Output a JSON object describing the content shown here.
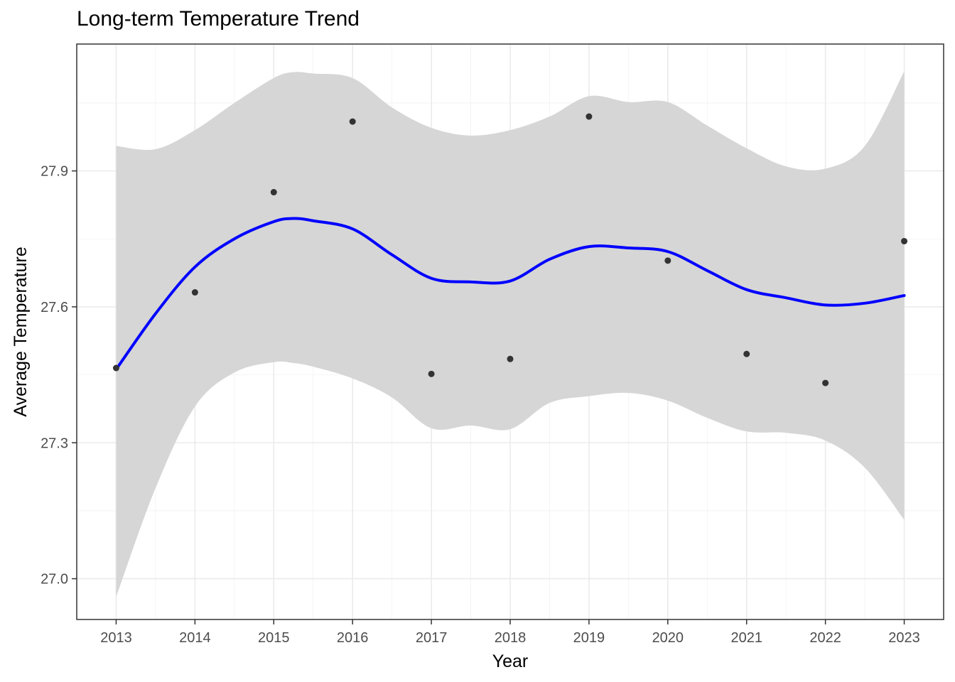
{
  "chart_data": {
    "type": "scatter",
    "title": "Long-term Temperature Trend",
    "xlabel": "Year",
    "ylabel": "Average Temperature",
    "xlim": [
      2012.5,
      2023.5
    ],
    "ylim": [
      26.91,
      28.18
    ],
    "x_ticks": [
      2013,
      2014,
      2015,
      2016,
      2017,
      2018,
      2019,
      2020,
      2021,
      2022,
      2023
    ],
    "y_ticks": [
      27.0,
      27.3,
      27.6,
      27.9
    ],
    "y_tick_labels": [
      "27.0",
      "27.3",
      "27.6",
      "27.9"
    ],
    "grid": true,
    "points": {
      "x": [
        2013,
        2014,
        2015,
        2016,
        2017,
        2018,
        2019,
        2020,
        2021,
        2022,
        2023
      ],
      "y": [
        27.465,
        27.632,
        27.853,
        28.009,
        27.452,
        27.485,
        28.02,
        27.702,
        27.496,
        27.432,
        27.745
      ],
      "color": "#333333"
    },
    "smooth": {
      "color": "#0000ff",
      "band_color": "#d6d6d6",
      "x": [
        2013,
        2013.5,
        2014,
        2014.5,
        2015,
        2015.25,
        2015.5,
        2016,
        2016.5,
        2017,
        2017.5,
        2018,
        2018.5,
        2019,
        2019.5,
        2020,
        2020.5,
        2021,
        2021.5,
        2022,
        2022.5,
        2023
      ],
      "y": [
        27.462,
        27.585,
        27.688,
        27.75,
        27.788,
        27.795,
        27.79,
        27.772,
        27.715,
        27.663,
        27.655,
        27.657,
        27.705,
        27.733,
        27.73,
        27.722,
        27.68,
        27.638,
        27.62,
        27.604,
        27.608,
        27.625
      ],
      "upper": [
        27.955,
        27.948,
        27.99,
        28.05,
        28.105,
        28.118,
        28.115,
        28.105,
        28.04,
        27.995,
        27.978,
        27.99,
        28.02,
        28.065,
        28.052,
        28.052,
        28.0,
        27.95,
        27.91,
        27.905,
        27.955,
        28.12
      ],
      "lower": [
        26.96,
        27.2,
        27.38,
        27.455,
        27.478,
        27.476,
        27.468,
        27.442,
        27.4,
        27.332,
        27.338,
        27.33,
        27.388,
        27.403,
        27.41,
        27.393,
        27.355,
        27.325,
        27.322,
        27.305,
        27.245,
        27.13
      ]
    }
  }
}
